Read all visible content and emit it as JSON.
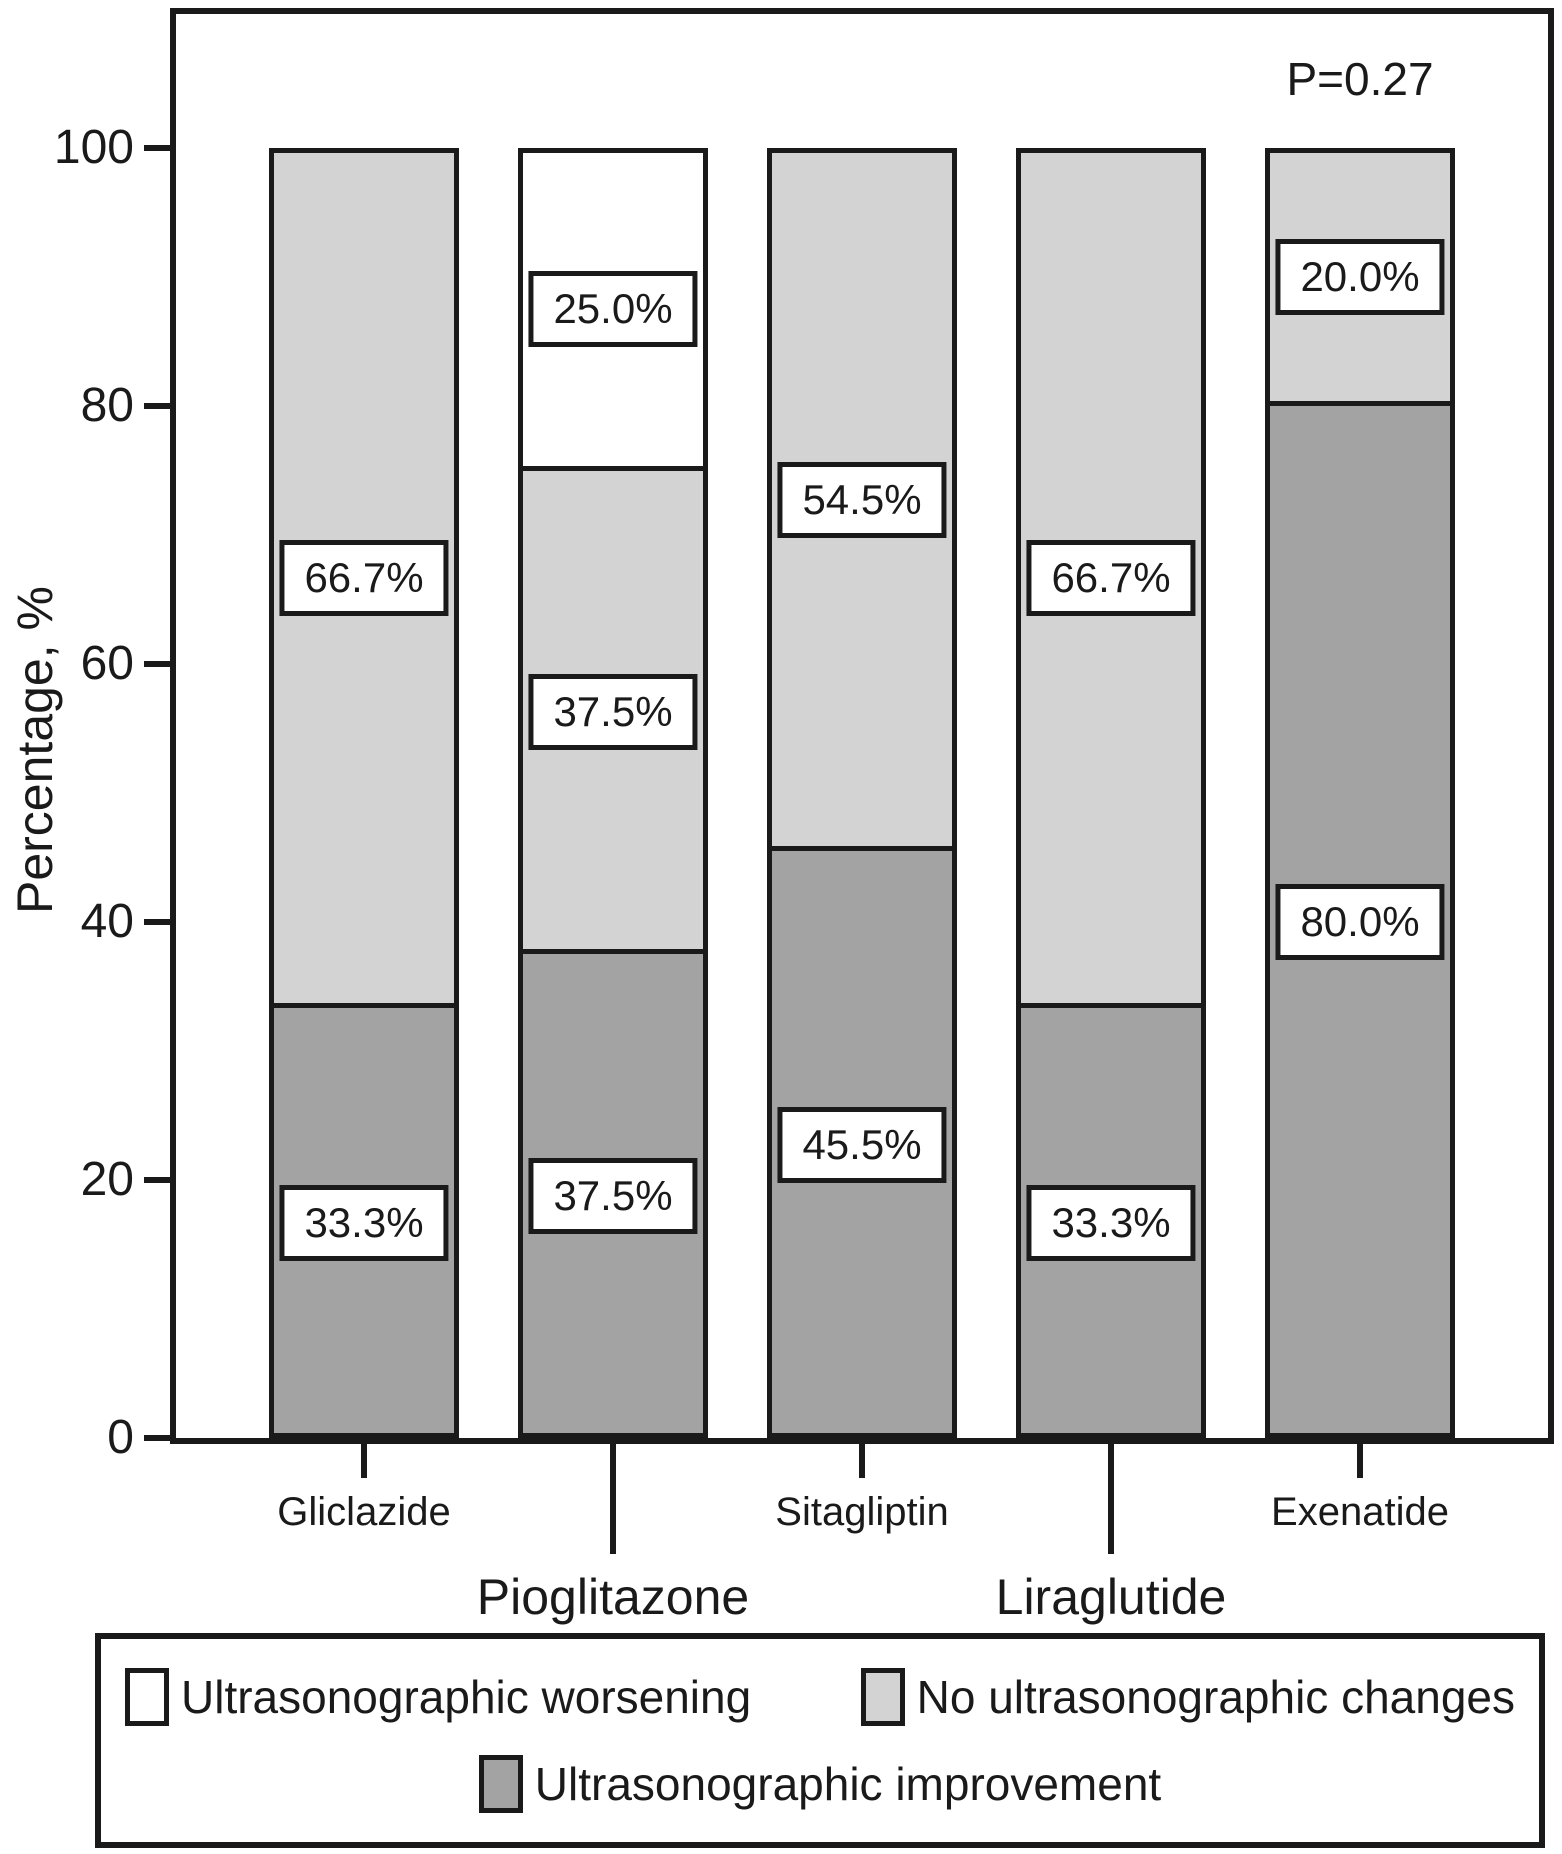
{
  "figure": {
    "kind": "stacked bar chart figure",
    "background": "#ffffff",
    "line_color": "#1a1a1a"
  },
  "chart_data": {
    "type": "bar",
    "stacked": true,
    "title": "",
    "xlabel": "",
    "ylabel": "Percentage, %",
    "ylim": [
      0,
      100
    ],
    "yticks": [
      0,
      20,
      40,
      60,
      80,
      100
    ],
    "grid": false,
    "annotation": "P=0.27",
    "categories": [
      "Gliclazide",
      "Pioglitazone",
      "Sitagliptin",
      "Liraglutide",
      "Exenatide"
    ],
    "category_label_rows": [
      1,
      2,
      1,
      2,
      1
    ],
    "series": [
      {
        "name": "Ultrasonographic improvement",
        "color": "#a3a3a3",
        "values": [
          33.3,
          37.5,
          45.5,
          33.3,
          80.0
        ],
        "labels": [
          "33.3%",
          "37.5%",
          "45.5%",
          "33.3%",
          "80.0%"
        ]
      },
      {
        "name": "No ultrasonographic changes",
        "color": "#d3d3d3",
        "values": [
          66.7,
          37.5,
          54.5,
          66.7,
          20.0
        ],
        "labels": [
          "66.7%",
          "37.5%",
          "54.5%",
          "66.7%",
          "20.0%"
        ]
      },
      {
        "name": "Ultrasonographic worsening",
        "color": "#ffffff",
        "values": [
          0,
          25.0,
          0,
          0,
          0
        ],
        "labels": [
          null,
          "25.0%",
          null,
          null,
          null
        ]
      }
    ],
    "stack_order_bottom_to_top": [
      "Ultrasonographic improvement",
      "No ultrasonographic changes",
      "Ultrasonographic worsening"
    ],
    "legend": {
      "position": "bottom",
      "row1": [
        "Ultrasonographic worsening",
        "No ultrasonographic changes"
      ],
      "row2": [
        "Ultrasonographic improvement"
      ]
    }
  }
}
